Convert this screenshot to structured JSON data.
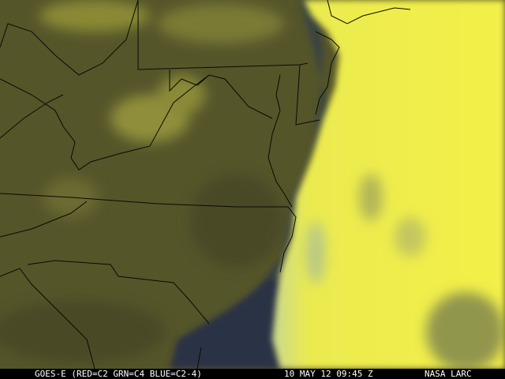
{
  "caption": {
    "satellite": "GOES-E (RED=C2 GRN=C4 BLUE=C2-4)",
    "datetime": "10 MAY 12 09:45 Z",
    "credit": "NASA LARC"
  },
  "colors": {
    "land": "#55552a",
    "cloud": "#f0f040",
    "ocean": "#2a3044",
    "border": "#0a0a05",
    "caption_bg": "#000000",
    "caption_text": "#ffffff"
  }
}
